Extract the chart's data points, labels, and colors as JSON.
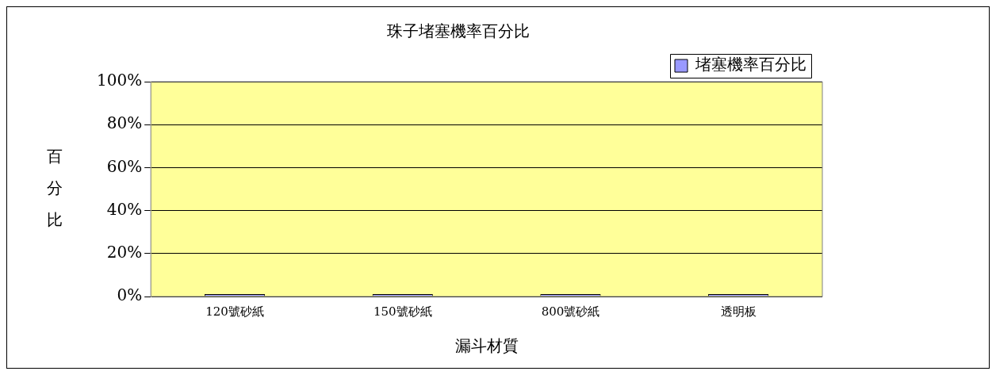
{
  "chart_data": {
    "type": "bar",
    "title": "珠子堵塞機率百分比",
    "xlabel": "漏斗材質",
    "ylabel": "百分比",
    "categories": [
      "120號砂紙",
      "150號砂紙",
      "800號砂紙",
      "透明板"
    ],
    "series": [
      {
        "name": "堵塞機率百分比",
        "color": "#9999ff",
        "values": [
          0,
          0,
          0,
          0
        ]
      }
    ],
    "ylim": [
      0,
      100
    ],
    "yticks": [
      {
        "value": 0,
        "label": "0%"
      },
      {
        "value": 20,
        "label": "20%"
      },
      {
        "value": 40,
        "label": "40%"
      },
      {
        "value": 60,
        "label": "60%"
      },
      {
        "value": 80,
        "label": "80%"
      },
      {
        "value": 100,
        "label": "100%"
      }
    ],
    "grid": "y",
    "legend": "top right"
  }
}
